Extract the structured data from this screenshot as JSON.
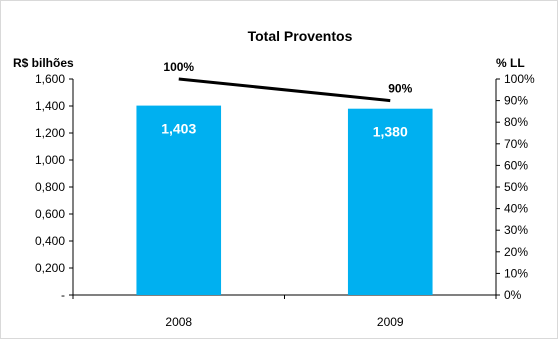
{
  "chart_data": {
    "type": "bar",
    "title": "Total Proventos",
    "ylabel_left": "R$ bilhões",
    "ylabel_right": "% LL",
    "categories": [
      "2008",
      "2009"
    ],
    "series": [
      {
        "type": "bar",
        "axis": "left",
        "values": [
          1.403,
          1.38
        ],
        "data_labels": [
          "1,403",
          "1,380"
        ],
        "color": "#00b0f0"
      },
      {
        "type": "line",
        "axis": "right",
        "values": [
          100,
          90
        ],
        "data_labels": [
          "100%",
          "90%"
        ],
        "color": "#000000"
      }
    ],
    "ylim_left": [
      0,
      1.6
    ],
    "ylim_right": [
      0,
      100
    ],
    "yticks_left": [
      "-",
      "0,200",
      "0,400",
      "0,600",
      "0,800",
      "1,000",
      "1,200",
      "1,400",
      "1,600"
    ],
    "yticks_right": [
      "0%",
      "10%",
      "20%",
      "30%",
      "40%",
      "50%",
      "60%",
      "70%",
      "80%",
      "90%",
      "100%"
    ],
    "grid": false,
    "legend": "none"
  }
}
